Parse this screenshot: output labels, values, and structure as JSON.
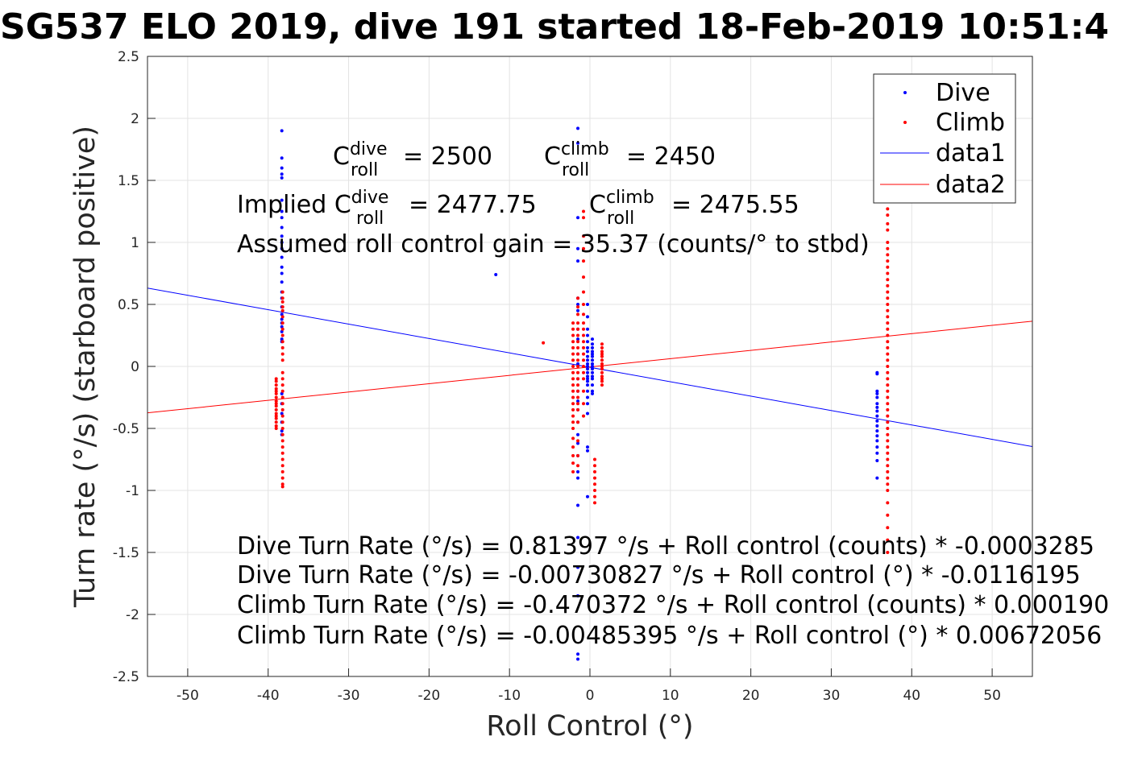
{
  "chart_data": {
    "type": "scatter",
    "title": "SG537 ELO 2019, dive 191 started 18-Feb-2019 10:51:4",
    "xlabel": "Roll Control (°)",
    "ylabel": "Turn rate (°/s) (starboard positive)",
    "xlim": [
      -55,
      55
    ],
    "ylim": [
      -2.5,
      2.5
    ],
    "xticks": [
      -50,
      -40,
      -30,
      -20,
      -10,
      0,
      10,
      20,
      30,
      40,
      50
    ],
    "yticks": [
      -2.5,
      -2,
      -1.5,
      -1,
      -0.5,
      0,
      0.5,
      1,
      1.5,
      2,
      2.5
    ],
    "xtick_labels": [
      "-50",
      "-40",
      "-30",
      "-20",
      "-10",
      "0",
      "10",
      "20",
      "30",
      "40",
      "50"
    ],
    "ytick_labels": [
      "-2.5",
      "-2",
      "-1.5",
      "-1",
      "-0.5",
      "0",
      "0.5",
      "1",
      "1.5",
      "2",
      "2.5"
    ],
    "grid": true,
    "legend_position": "top-right",
    "series": [
      {
        "name": "Dive",
        "kind": "points",
        "color": "#0000ff",
        "clusters": [
          {
            "x": -38.3,
            "y_values": [
              1.9,
              1.68,
              1.6,
              1.55,
              1.52,
              1.34,
              1.25,
              1.2,
              1.12,
              1.05,
              1.0,
              0.95,
              0.88,
              0.8,
              0.75,
              0.68,
              0.6,
              0.55,
              0.48,
              0.42,
              0.38,
              0.35,
              0.32,
              0.28,
              0.22,
              0.2,
              -0.22,
              -0.3,
              -0.38,
              -0.45,
              -0.52,
              -0.55
            ]
          },
          {
            "x": -1.5,
            "y_values": [
              1.92,
              1.8,
              1.2,
              0.95,
              0.85,
              0.55,
              0.5,
              0.45,
              0.3,
              0.22,
              0.1,
              0.02,
              -0.1,
              -0.2,
              -0.28,
              -0.35,
              -0.45,
              -0.55,
              -0.62,
              -0.72,
              -0.85,
              -0.9,
              -1.12,
              -1.38,
              -1.62,
              -1.85,
              -2.32,
              -2.36
            ]
          },
          {
            "x": -0.3,
            "y_values": [
              0.5,
              0.4,
              0.3,
              0.25,
              0.2,
              0.15,
              0.12,
              0.08,
              0.05,
              0.02,
              0.0,
              -0.02,
              -0.05,
              -0.08,
              -0.1,
              -0.12,
              -0.15,
              -0.2,
              -0.25,
              -0.3,
              -0.38,
              -0.65,
              -0.68,
              -1.05
            ]
          },
          {
            "x": 0.3,
            "y_values": [
              0.22,
              0.18,
              0.15,
              0.12,
              0.1,
              0.08,
              0.05,
              0.02,
              0.0,
              -0.02,
              -0.05,
              -0.08,
              -0.1,
              -0.15,
              -0.2,
              -0.22
            ]
          },
          {
            "x": 35.7,
            "y_values": [
              -0.05,
              -0.06,
              -0.2,
              -0.22,
              -0.25,
              -0.3,
              -0.33,
              -0.36,
              -0.4,
              -0.44,
              -0.48,
              -0.52,
              -0.56,
              -0.6,
              -0.65,
              -0.7,
              -0.76,
              -0.9
            ]
          }
        ],
        "points": [
          [
            -11.7,
            0.74
          ]
        ]
      },
      {
        "name": "Climb",
        "kind": "points",
        "color": "#ff0000",
        "clusters": [
          {
            "x": -39,
            "y_values": [
              -0.1,
              -0.12,
              -0.15,
              -0.18,
              -0.2,
              -0.22,
              -0.25,
              -0.28,
              -0.3,
              -0.32,
              -0.35,
              -0.38,
              -0.4,
              -0.42,
              -0.45,
              -0.48,
              -0.5
            ]
          },
          {
            "x": -38.2,
            "y_values": [
              0.6,
              0.55,
              0.52,
              0.48,
              0.45,
              0.4,
              0.35,
              0.3,
              0.25,
              0.2,
              0.15,
              0.1,
              0.05,
              -0.05,
              -0.1,
              -0.15,
              -0.2,
              -0.25,
              -0.3,
              -0.35,
              -0.4,
              -0.45,
              -0.5,
              -0.55,
              -0.6,
              -0.65,
              -0.7,
              -0.75,
              -0.8,
              -0.85,
              -0.9,
              -0.95,
              -0.97
            ]
          },
          {
            "x": -2.1,
            "y_values": [
              0.35,
              0.3,
              0.25,
              0.2,
              0.15,
              0.1,
              0.05,
              0.0,
              -0.05,
              -0.1,
              -0.15,
              -0.2,
              -0.25,
              -0.3,
              -0.35,
              -0.4,
              -0.45,
              -0.5,
              -0.58,
              -0.65,
              -0.72,
              -0.78,
              -0.85
            ]
          },
          {
            "x": -1.5,
            "y_values": [
              0.55,
              0.48,
              0.42,
              0.35,
              0.3,
              0.25,
              0.2,
              0.15,
              0.1,
              0.05,
              0.0,
              -0.05,
              -0.1,
              -0.15,
              -0.2,
              -0.25,
              -0.3,
              -0.35,
              -0.45,
              -0.6,
              -0.72,
              -0.8
            ]
          },
          {
            "x": -0.8,
            "y_values": [
              1.25,
              1.2,
              1.05,
              0.95,
              0.85,
              0.72,
              0.6,
              0.5,
              0.42,
              0.35,
              0.3,
              0.25,
              0.2,
              0.15,
              0.1,
              0.05,
              0.0,
              -0.05,
              -0.1,
              -0.2,
              -0.3,
              -0.4
            ]
          },
          {
            "x": 1.5,
            "y_values": [
              0.18,
              0.15,
              0.12,
              0.1,
              0.08,
              0.05,
              0.02,
              0.0,
              -0.02,
              -0.05,
              -0.08,
              -0.1,
              -0.12,
              -0.15
            ]
          },
          {
            "x": 0.6,
            "y_values": [
              -0.75,
              -0.8,
              -0.85,
              -0.9,
              -0.95,
              -1.0,
              -1.05,
              -1.1
            ]
          },
          {
            "x": 37.0,
            "y_values": [
              1.27,
              1.22,
              1.15,
              1.1,
              1.0,
              0.95,
              0.9,
              0.85,
              0.8,
              0.75,
              0.7,
              0.65,
              0.6,
              0.55,
              0.5,
              0.45,
              0.4,
              0.35,
              0.3,
              0.25,
              0.2,
              0.15,
              0.1,
              0.05,
              0.0,
              -0.05,
              -0.1,
              -0.15,
              -0.2,
              -0.25,
              -0.3,
              -0.35,
              -0.4,
              -0.45,
              -0.5,
              -0.55,
              -0.6,
              -0.65,
              -0.7,
              -0.75,
              -0.8,
              -0.85,
              -0.9,
              -0.95,
              -1.0,
              -1.1,
              -1.2,
              -1.3,
              -1.4,
              -1.5
            ]
          }
        ],
        "points": [
          [
            -5.8,
            0.19
          ]
        ]
      },
      {
        "name": "data1",
        "kind": "line",
        "color": "#0000ff",
        "intercept": -0.00730827,
        "slope": -0.0116195
      },
      {
        "name": "data2",
        "kind": "line",
        "color": "#ff0000",
        "intercept": -0.00485395,
        "slope": 0.00672056
      }
    ],
    "annotations": {
      "c_roll_dive": {
        "base": "C",
        "sup": "dive",
        "sub": "roll",
        "value": "= 2500"
      },
      "c_roll_climb": {
        "base": "C",
        "sup": "climb",
        "sub": "roll",
        "value": "= 2450"
      },
      "implied_dive": {
        "prefix": "Implied C",
        "sup": "dive",
        "sub": "roll",
        "value": "= 2477.75"
      },
      "implied_climb": {
        "base": "C",
        "sup": "climb",
        "sub": "roll",
        "value": "= 2475.55"
      },
      "gain": "Assumed roll control gain = 35.37 (counts/° to stbd)",
      "eq1": "Dive Turn Rate (°/s) = 0.81397 °/s + Roll control (counts) * -0.0003285",
      "eq2": "Dive Turn Rate (°/s) = -0.00730827 °/s + Roll control (°) * -0.0116195",
      "eq3": "Climb Turn Rate (°/s) = -0.470372 °/s + Roll control (counts) * 0.000190",
      "eq4": "Climb Turn Rate (°/s) = -0.00485395 °/s + Roll control (°) * 0.00672056"
    }
  }
}
